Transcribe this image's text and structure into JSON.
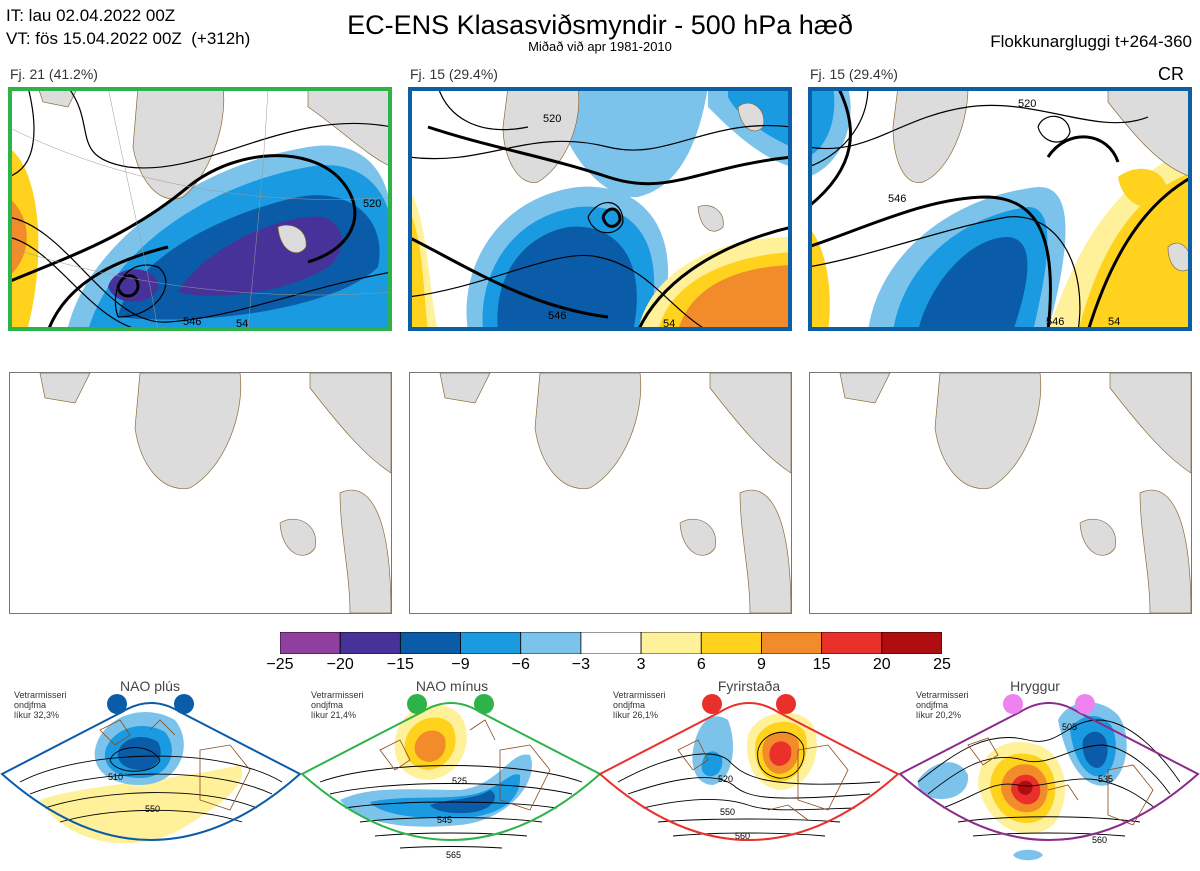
{
  "header": {
    "it_line": "IT: lau 02.04.2022 00Z",
    "vt_line": "VT: fös 15.04.2022 00Z  (+312h)",
    "title": "EC-ENS Klasasviðsmyndir - 500 hPa hæð",
    "subtitle": "Miðað við apr 1981-2010",
    "window": "Flokkunargluggi t+264-360"
  },
  "clusters": [
    {
      "label": "Fj. 21 (41.2%)",
      "border_color": "#2db34a",
      "extra": "",
      "contours": [
        "520",
        "546",
        "54",
        "5"
      ]
    },
    {
      "label": "Fj. 15 (29.4%)",
      "border_color": "#0b5fa5",
      "extra": "",
      "contours": [
        "520",
        "546",
        "54"
      ]
    },
    {
      "label": "Fj. 15 (29.4%)",
      "border_color": "#0b5fa5",
      "extra": "CR",
      "contours": [
        "520",
        "546",
        "546",
        "54"
      ]
    }
  ],
  "colorbar": {
    "ticks": [
      "−25",
      "−20",
      "−15",
      "−9",
      "−6",
      "−3",
      "3",
      "6",
      "9",
      "15",
      "20",
      "25"
    ],
    "colors": [
      "#8e3fa0",
      "#47329a",
      "#0b5ca8",
      "#1a9ae0",
      "#7cc3ec",
      "#ffffff",
      "#fff09a",
      "#ffd21e",
      "#f28c2a",
      "#e9302a",
      "#b00d12"
    ]
  },
  "regimes": [
    {
      "name": "NAO plús",
      "note": "Vetrarmisseri\nondjfma\nlíkur 32,3%",
      "color": "#0b5ca8",
      "contours": [
        "510",
        "550"
      ]
    },
    {
      "name": "NAO mínus",
      "note": "Vetrarmisseri\nondjfma\nlíkur 21,4%",
      "color": "#2db34a",
      "contours": [
        "525",
        "545",
        "565"
      ]
    },
    {
      "name": "Fyrirstaða",
      "note": "Vetrarmisseri\nondjfma\nlíkur 26,1%",
      "color": "#e9302a",
      "contours": [
        "520",
        "550",
        "560"
      ]
    },
    {
      "name": "Hryggur",
      "note": "Vetrarmisseri\nondjfma\nlíkur 20,2%",
      "color": "#d33ad3",
      "contours": [
        "505",
        "535",
        "560"
      ]
    }
  ],
  "icons": {
    "land": "coastline-map",
    "dots": "regime-indicator-dot"
  }
}
